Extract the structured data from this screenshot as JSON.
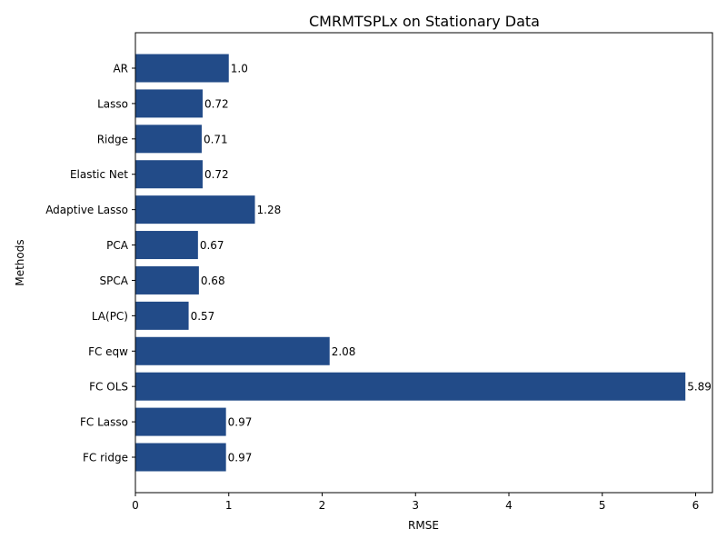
{
  "chart_data": {
    "type": "bar",
    "orientation": "horizontal",
    "title": "CMRMTSPLx on Stationary Data",
    "xlabel": "RMSE",
    "ylabel": "Methods",
    "categories": [
      "AR",
      "Lasso",
      "Ridge",
      "Elastic Net",
      "Adaptive Lasso",
      "PCA",
      "SPCA",
      "LA(PC)",
      "FC eqw",
      "FC OLS",
      "FC Lasso",
      "FC ridge"
    ],
    "values": [
      1.0,
      0.72,
      0.71,
      0.72,
      1.28,
      0.67,
      0.68,
      0.57,
      2.08,
      5.89,
      0.97,
      0.97
    ],
    "value_labels": [
      "1.0",
      "0.72",
      "0.71",
      "0.72",
      "1.28",
      "0.67",
      "0.68",
      "0.57",
      "2.08",
      "5.89",
      "0.97",
      "0.97"
    ],
    "xlim": [
      0,
      6.18
    ],
    "xticks": [
      0,
      1,
      2,
      3,
      4,
      5,
      6
    ],
    "xtick_labels": [
      "0",
      "1",
      "2",
      "3",
      "4",
      "5",
      "6"
    ],
    "grid": false,
    "legend": "none",
    "bar_color": "#224b88"
  }
}
